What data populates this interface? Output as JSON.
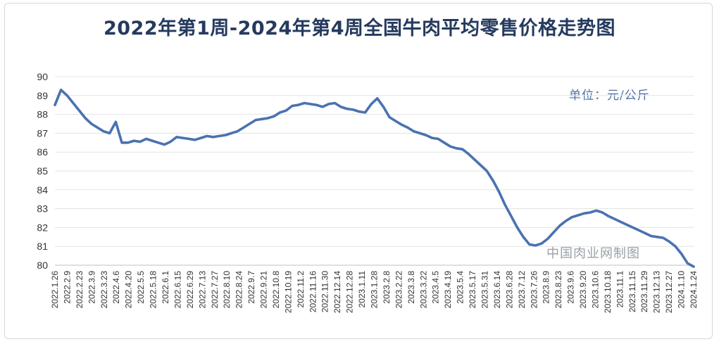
{
  "chart_data": {
    "type": "line",
    "title": "2022年第1周-2024年第4周全国牛肉平均零售价格走势图",
    "unit_label": "单位：元/公斤",
    "watermark": "中国肉业网制图",
    "ylim": [
      80,
      90
    ],
    "yticks": [
      80,
      81,
      82,
      83,
      84,
      85,
      86,
      87,
      88,
      89,
      90
    ],
    "grid": true,
    "line_color": "#4a72b0",
    "x_tick_labels": [
      "2022.1.26",
      "2022.2.9",
      "2022.2.23",
      "2022.3.9",
      "2022.3.23",
      "2022.4.6",
      "2022.4.20",
      "2022.5.5",
      "2022.5.18",
      "2022.6.1",
      "2022.6.15",
      "2022.6.29",
      "2022.7.13",
      "2022.7.27",
      "2022.8.10",
      "2022.8.24",
      "2022.9.7",
      "2022.9.21",
      "2022.10.8",
      "2022.10.19",
      "2022.11.2",
      "2022.11.16",
      "2022.11.30",
      "2022.12.14",
      "2022.12.28",
      "2023.1.11",
      "2023.1.28",
      "2023.2.8",
      "2023.2.22",
      "2023.3.8",
      "2023.3.22",
      "2023.4.5",
      "2023.4.19",
      "2023.5.4",
      "2023.5.17",
      "2023.5.31",
      "2023.6.14",
      "2023.6.28",
      "2023.7.12",
      "2023.7.26",
      "2023.8.9",
      "2023.8.23",
      "2023.9.6",
      "2023.9.20",
      "2023.10.6",
      "2023.10.18",
      "2023.11.1",
      "2023.11.15",
      "2023.11.29",
      "2023.12.13",
      "2023.12.27",
      "2024.1.10",
      "2024.1.24"
    ],
    "values": [
      88.5,
      89.3,
      89.0,
      88.6,
      88.2,
      87.8,
      87.5,
      87.3,
      87.1,
      87.0,
      87.6,
      86.5,
      86.5,
      86.6,
      86.55,
      86.7,
      86.6,
      86.5,
      86.4,
      86.55,
      86.8,
      86.75,
      86.7,
      86.65,
      86.75,
      86.85,
      86.8,
      86.85,
      86.9,
      87.0,
      87.1,
      87.3,
      87.5,
      87.7,
      87.75,
      87.8,
      87.9,
      88.1,
      88.2,
      88.45,
      88.5,
      88.6,
      88.55,
      88.5,
      88.4,
      88.55,
      88.6,
      88.4,
      88.3,
      88.25,
      88.15,
      88.1,
      88.55,
      88.85,
      88.4,
      87.85,
      87.65,
      87.45,
      87.3,
      87.1,
      87.0,
      86.9,
      86.75,
      86.7,
      86.5,
      86.3,
      86.2,
      86.15,
      85.9,
      85.6,
      85.3,
      85.0,
      84.5,
      83.9,
      83.2,
      82.6,
      82.0,
      81.5,
      81.1,
      81.05,
      81.15,
      81.4,
      81.75,
      82.1,
      82.35,
      82.55,
      82.65,
      82.75,
      82.8,
      82.9,
      82.8,
      82.6,
      82.45,
      82.3,
      82.15,
      82.0,
      81.85,
      81.7,
      81.55,
      81.5,
      81.45,
      81.25,
      81.0,
      80.6,
      80.1,
      79.9
    ]
  }
}
